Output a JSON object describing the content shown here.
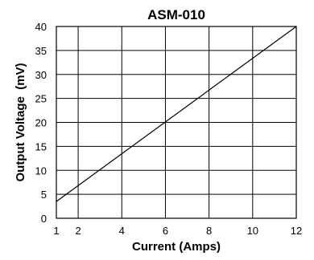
{
  "chart_data": {
    "type": "line",
    "title": "ASM-010",
    "xlabel": "Current (Amps)",
    "ylabel": "Output Voltage  (mV)",
    "xlim": [
      1,
      12
    ],
    "ylim": [
      0,
      40
    ],
    "x_ticks": [
      1,
      2,
      4,
      6,
      8,
      10,
      12
    ],
    "y_ticks": [
      0,
      5,
      10,
      15,
      20,
      25,
      30,
      35,
      40
    ],
    "grid": true,
    "series": [
      {
        "x": [
          1,
          12
        ],
        "y": [
          3.5,
          40
        ]
      }
    ]
  }
}
